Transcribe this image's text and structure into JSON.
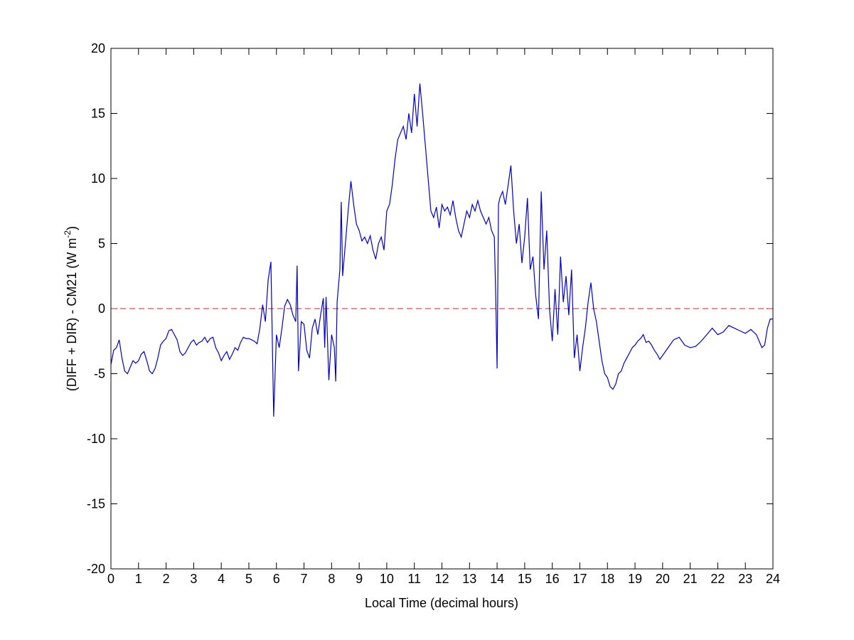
{
  "chart_data": {
    "type": "line",
    "xlabel": "Local Time (decimal hours)",
    "ylabel": [
      "(DIFF + DIR) - CM21 (W m",
      "-2",
      ")"
    ],
    "xlim": [
      0,
      24
    ],
    "ylim": [
      -20,
      20
    ],
    "xticks": [
      0,
      1,
      2,
      3,
      4,
      5,
      6,
      7,
      8,
      9,
      10,
      11,
      12,
      13,
      14,
      15,
      16,
      17,
      18,
      19,
      20,
      21,
      22,
      23,
      24
    ],
    "yticks": [
      -20,
      -15,
      -10,
      -5,
      0,
      5,
      10,
      15,
      20
    ],
    "reference_line": {
      "value": 0,
      "color": "#a83232",
      "style": "dashed"
    },
    "series": [
      {
        "color": "#0000c8",
        "x": [
          0,
          0.1,
          0.2,
          0.3,
          0.4,
          0.5,
          0.6,
          0.7,
          0.8,
          0.9,
          1,
          1.1,
          1.2,
          1.3,
          1.4,
          1.5,
          1.6,
          1.7,
          1.8,
          1.9,
          2,
          2.1,
          2.2,
          2.3,
          2.4,
          2.5,
          2.6,
          2.7,
          2.8,
          2.9,
          3,
          3.1,
          3.2,
          3.3,
          3.4,
          3.5,
          3.6,
          3.7,
          3.8,
          3.9,
          4,
          4.1,
          4.2,
          4.3,
          4.4,
          4.5,
          4.6,
          4.7,
          4.8,
          4.9,
          5,
          5.1,
          5.2,
          5.3,
          5.4,
          5.5,
          5.6,
          5.7,
          5.8,
          5.9,
          6,
          6.1,
          6.2,
          6.3,
          6.4,
          6.5,
          6.6,
          6.7,
          6.75,
          6.8,
          6.9,
          7,
          7.1,
          7.2,
          7.3,
          7.4,
          7.5,
          7.6,
          7.7,
          7.75,
          7.8,
          7.9,
          8,
          8.1,
          8.15,
          8.2,
          8.3,
          8.35,
          8.4,
          8.5,
          8.6,
          8.7,
          8.8,
          8.9,
          9,
          9.1,
          9.2,
          9.3,
          9.4,
          9.5,
          9.6,
          9.7,
          9.8,
          9.9,
          10,
          10.1,
          10.2,
          10.3,
          10.4,
          10.5,
          10.6,
          10.7,
          10.8,
          10.9,
          11,
          11.1,
          11.2,
          11.3,
          11.4,
          11.5,
          11.6,
          11.7,
          11.8,
          11.9,
          12,
          12.1,
          12.2,
          12.3,
          12.4,
          12.5,
          12.6,
          12.7,
          12.8,
          12.9,
          13,
          13.1,
          13.2,
          13.3,
          13.4,
          13.5,
          13.6,
          13.7,
          13.8,
          13.9,
          13.95,
          14,
          14.05,
          14.1,
          14.2,
          14.3,
          14.4,
          14.5,
          14.6,
          14.7,
          14.8,
          14.9,
          15,
          15.1,
          15.2,
          15.3,
          15.4,
          15.5,
          15.6,
          15.7,
          15.8,
          15.9,
          16,
          16.1,
          16.2,
          16.3,
          16.4,
          16.5,
          16.6,
          16.7,
          16.8,
          16.9,
          17,
          17.1,
          17.2,
          17.3,
          17.4,
          17.5,
          17.6,
          17.7,
          17.8,
          17.9,
          18,
          18.1,
          18.2,
          18.3,
          18.4,
          18.5,
          18.6,
          18.7,
          18.8,
          18.9,
          19,
          19.1,
          19.2,
          19.3,
          19.4,
          19.5,
          19.6,
          19.7,
          19.8,
          19.9,
          20,
          20.2,
          20.4,
          20.6,
          20.8,
          21,
          21.2,
          21.4,
          21.6,
          21.8,
          22,
          22.2,
          22.4,
          22.6,
          22.8,
          23,
          23.2,
          23.4,
          23.6,
          23.7,
          23.8,
          23.9,
          24
        ],
        "values": [
          -4.3,
          -3.2,
          -3.0,
          -2.4,
          -3.8,
          -4.8,
          -5.0,
          -4.5,
          -4.0,
          -4.2,
          -4.0,
          -3.5,
          -3.3,
          -4.0,
          -4.8,
          -5.0,
          -4.6,
          -3.8,
          -2.8,
          -2.5,
          -2.3,
          -1.7,
          -1.6,
          -2.0,
          -2.4,
          -3.3,
          -3.6,
          -3.4,
          -3.0,
          -2.6,
          -2.4,
          -2.8,
          -2.6,
          -2.5,
          -2.2,
          -2.6,
          -2.3,
          -2.2,
          -3.0,
          -3.4,
          -4.0,
          -3.6,
          -3.3,
          -3.9,
          -3.5,
          -3.0,
          -3.2,
          -2.6,
          -2.2,
          -2.3,
          -2.3,
          -2.4,
          -2.5,
          -2.7,
          -1.5,
          0.3,
          -1.0,
          2.2,
          3.6,
          -8.3,
          -2.0,
          -3.0,
          -1.5,
          0.2,
          0.7,
          0.3,
          -0.5,
          -1.0,
          3.3,
          -4.8,
          -1.0,
          -1.2,
          -3.2,
          -3.8,
          -1.5,
          -0.8,
          -2.0,
          -0.5,
          0.8,
          -3.0,
          0.9,
          -5.5,
          -2.0,
          -3.0,
          -5.6,
          0.5,
          3.0,
          8.2,
          2.5,
          5.0,
          7.5,
          9.8,
          8.0,
          6.5,
          6.0,
          5.2,
          5.5,
          5.0,
          5.6,
          4.5,
          3.8,
          5.0,
          5.5,
          4.5,
          7.5,
          8.0,
          9.5,
          11.5,
          13.0,
          13.5,
          14.0,
          13.0,
          15.0,
          13.5,
          16.5,
          14.0,
          17.3,
          15.0,
          12.5,
          10.0,
          7.5,
          7.0,
          7.8,
          6.2,
          8.0,
          7.5,
          7.8,
          7.2,
          8.3,
          7.0,
          6.0,
          5.5,
          6.5,
          7.5,
          7.0,
          8.0,
          7.5,
          8.3,
          7.5,
          7.0,
          6.5,
          7.0,
          6.0,
          5.5,
          1.0,
          -4.6,
          8.0,
          8.5,
          9.0,
          8.0,
          9.5,
          11.0,
          7.5,
          5.0,
          6.5,
          3.5,
          5.5,
          8.5,
          3.0,
          4.0,
          1.0,
          -0.8,
          9.0,
          3.0,
          6.0,
          0.0,
          -2.5,
          1.5,
          -2.0,
          4.0,
          0.5,
          2.5,
          -0.5,
          3.0,
          -3.8,
          -2.0,
          -4.8,
          -3.0,
          -1.5,
          0.5,
          2.0,
          0.0,
          -1.0,
          -2.5,
          -4.0,
          -5.0,
          -5.3,
          -6.0,
          -6.2,
          -5.8,
          -5.0,
          -4.8,
          -4.2,
          -3.8,
          -3.4,
          -3.0,
          -2.8,
          -2.5,
          -2.3,
          -2.0,
          -2.6,
          -2.5,
          -2.8,
          -3.2,
          -3.5,
          -3.9,
          -3.6,
          -3.0,
          -2.4,
          -2.2,
          -2.8,
          -3.0,
          -2.9,
          -2.5,
          -2.0,
          -1.5,
          -2.0,
          -1.8,
          -1.3,
          -1.5,
          -1.7,
          -1.9,
          -1.6,
          -2.0,
          -3.0,
          -2.8,
          -1.5,
          -0.8,
          -0.8
        ]
      }
    ]
  }
}
